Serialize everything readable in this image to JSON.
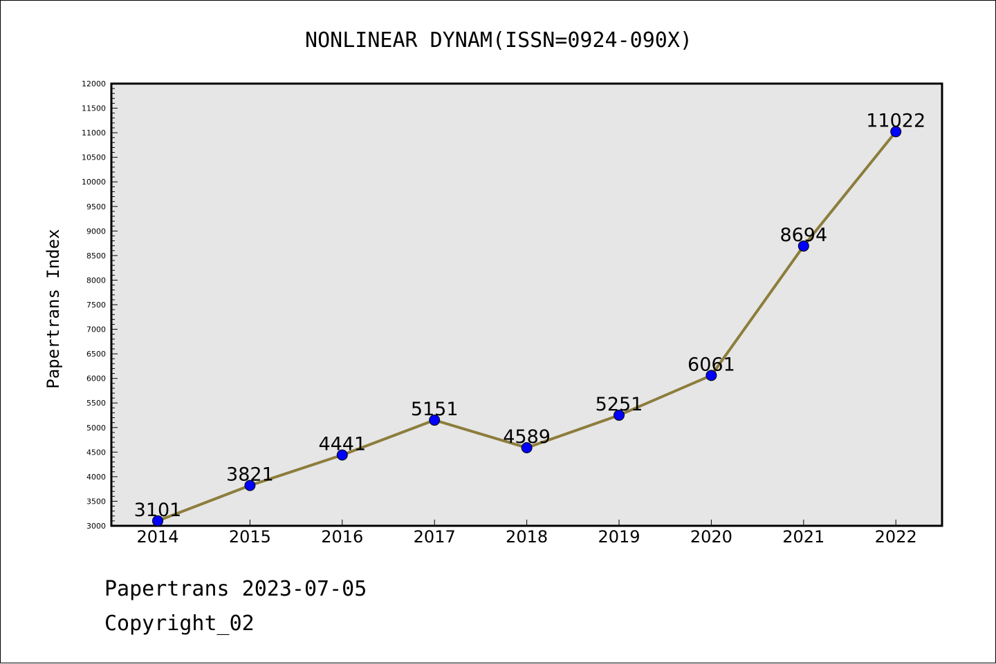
{
  "chart_data": {
    "type": "line",
    "title": "NONLINEAR DYNAM(ISSN=0924-090X)",
    "xlabel": "",
    "ylabel": "Papertrans Index",
    "categories": [
      "2014",
      "2015",
      "2016",
      "2017",
      "2018",
      "2019",
      "2020",
      "2021",
      "2022"
    ],
    "values": [
      3101,
      3821,
      4441,
      5151,
      4589,
      5251,
      6061,
      8694,
      11022
    ],
    "data_labels": [
      "3101",
      "3821",
      "4441",
      "5151",
      "4589",
      "5251",
      "6061",
      "8694",
      "11022"
    ],
    "ylim": [
      3000,
      12000
    ],
    "yticks": [
      3000,
      3500,
      4000,
      4500,
      5000,
      5500,
      6000,
      6500,
      7000,
      7500,
      8000,
      8500,
      9000,
      9500,
      10000,
      10500,
      11000,
      11500,
      12000
    ],
    "ytick_labels": [
      "3000",
      "3500",
      "4000",
      "4500",
      "5000",
      "5500",
      "6000",
      "6500",
      "7000",
      "7500",
      "8000",
      "8500",
      "9000",
      "9500",
      "10000",
      "10500",
      "11000",
      "11500",
      "12000"
    ],
    "grid": false,
    "line_color": "#8c7d3c",
    "marker_color": "#0000ff",
    "plot_background": "#e6e6e6"
  },
  "footer": {
    "date_text": "Papertrans 2023-07-05",
    "copyright_text": "Copyright_02"
  }
}
